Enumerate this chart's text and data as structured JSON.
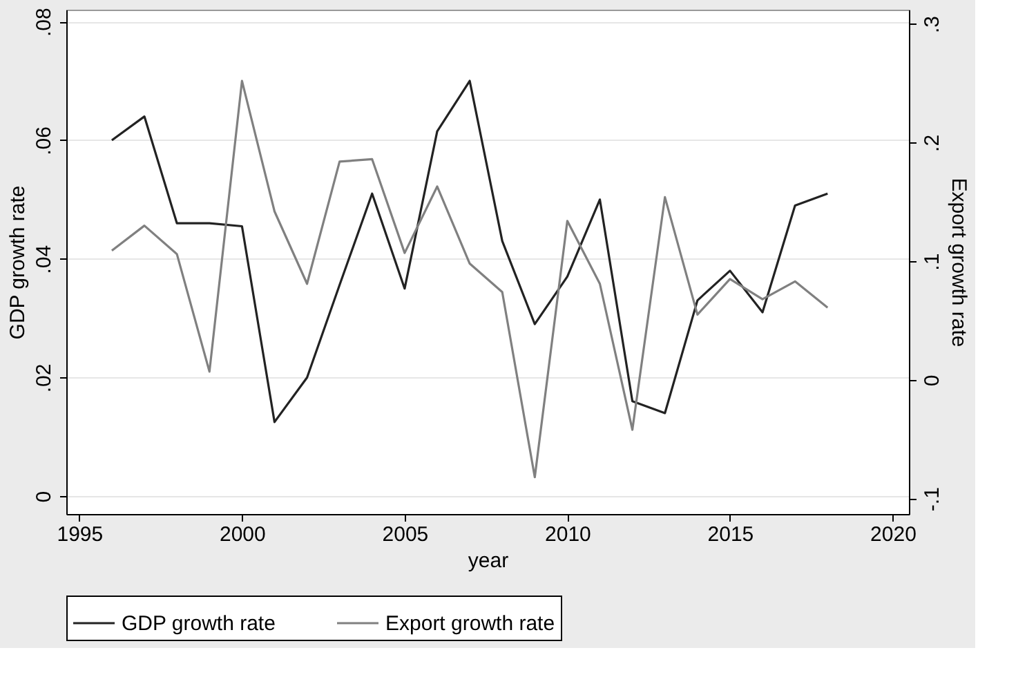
{
  "chart_data": {
    "type": "line",
    "xlabel": "year",
    "ylabel": "GDP growth rate",
    "y2label": "Export growth rate",
    "x": [
      1996,
      1997,
      1998,
      1999,
      2000,
      2001,
      2002,
      2003,
      2004,
      2005,
      2006,
      2007,
      2008,
      2009,
      2010,
      2011,
      2012,
      2013,
      2014,
      2015,
      2016,
      2017,
      2018
    ],
    "series": [
      {
        "name": "GDP growth rate",
        "color": "#222222",
        "axis": "y",
        "values": [
          0.06,
          0.064,
          0.046,
          0.046,
          0.0455,
          0.0125,
          0.02,
          0.0356,
          0.051,
          0.035,
          0.0615,
          0.07,
          0.043,
          0.029,
          0.037,
          0.05,
          0.016,
          0.014,
          0.033,
          0.038,
          0.031,
          0.049,
          0.051
        ]
      },
      {
        "name": "Export growth rate",
        "color": "#808080",
        "axis": "y2",
        "values": [
          0.109,
          0.13,
          0.106,
          0.007,
          0.252,
          0.142,
          0.081,
          0.184,
          0.186,
          0.107,
          0.163,
          0.098,
          0.074,
          -0.082,
          0.134,
          0.081,
          -0.042,
          0.154,
          0.055,
          0.085,
          0.068,
          0.083,
          0.061
        ]
      }
    ],
    "xlim": [
      1994.6,
      2020.5
    ],
    "xticks": [
      1995,
      2000,
      2005,
      2010,
      2015,
      2020
    ],
    "ylim": [
      -0.003,
      0.082
    ],
    "yticks": [
      {
        "value": 0,
        "label": "0"
      },
      {
        "value": 0.02,
        "label": ".02"
      },
      {
        "value": 0.04,
        "label": ".04"
      },
      {
        "value": 0.06,
        "label": ".06"
      },
      {
        "value": 0.08,
        "label": ".08"
      }
    ],
    "y2lim": [
      -0.113,
      0.312
    ],
    "y2ticks": [
      {
        "value": -0.1,
        "label": "-.1"
      },
      {
        "value": 0,
        "label": "0"
      },
      {
        "value": 0.1,
        "label": ".1"
      },
      {
        "value": 0.2,
        "label": ".2"
      },
      {
        "value": 0.3,
        "label": ".3"
      }
    ],
    "grid": "y",
    "legend": "bottom",
    "marker": "none",
    "line_style": "solid"
  }
}
